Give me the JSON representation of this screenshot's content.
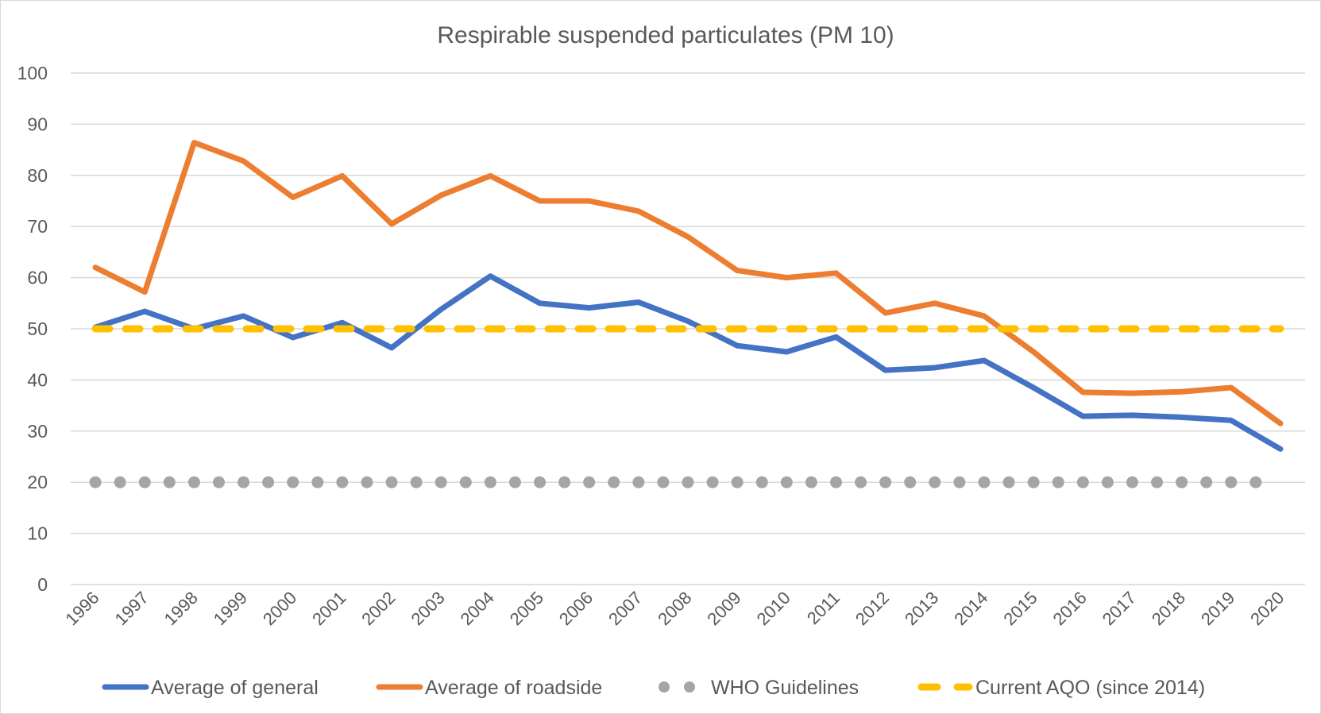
{
  "chart_data": {
    "type": "line",
    "title": "Respirable suspended particulates (PM 10)",
    "xlabel": "",
    "ylabel": "",
    "ylim": [
      0,
      100
    ],
    "yticks": [
      "0",
      "10",
      "20",
      "30",
      "40",
      "50",
      "60",
      "70",
      "80",
      "90",
      "100"
    ],
    "grid": true,
    "legend_position": "bottom",
    "categories": [
      "1996",
      "1997",
      "1998",
      "1999",
      "2000",
      "2001",
      "2002",
      "2003",
      "2004",
      "2005",
      "2006",
      "2007",
      "2008",
      "2009",
      "2010",
      "2011",
      "2012",
      "2013",
      "2014",
      "2015",
      "2016",
      "2017",
      "2018",
      "2019",
      "2020"
    ],
    "series": [
      {
        "name": "Average of general",
        "color": "#4472C4",
        "style": "solid",
        "values": [
          50.3,
          53.4,
          50.0,
          52.5,
          48.3,
          51.2,
          46.3,
          53.8,
          60.3,
          55.0,
          54.1,
          55.2,
          51.5,
          46.7,
          45.5,
          48.4,
          41.9,
          42.4,
          43.8,
          38.5,
          32.9,
          33.1,
          32.7,
          32.1,
          26.5
        ]
      },
      {
        "name": "Average of roadside",
        "color": "#ED7D31",
        "style": "solid",
        "values": [
          62.0,
          57.2,
          86.4,
          82.8,
          75.7,
          79.9,
          70.5,
          76.1,
          79.9,
          75.0,
          75.0,
          73.0,
          68.0,
          61.4,
          60.0,
          60.9,
          53.1,
          55.0,
          52.5,
          45.5,
          37.6,
          37.4,
          37.7,
          38.5,
          31.5
        ]
      },
      {
        "name": "WHO Guidelines",
        "color": "#A5A5A5",
        "style": "round-dot",
        "values": [
          20,
          20,
          20,
          20,
          20,
          20,
          20,
          20,
          20,
          20,
          20,
          20,
          20,
          20,
          20,
          20,
          20,
          20,
          20,
          20,
          20,
          20,
          20,
          20,
          20
        ]
      },
      {
        "name": "Current AQO (since 2014)",
        "color": "#FFC000",
        "style": "dash",
        "values": [
          50,
          50,
          50,
          50,
          50,
          50,
          50,
          50,
          50,
          50,
          50,
          50,
          50,
          50,
          50,
          50,
          50,
          50,
          50,
          50,
          50,
          50,
          50,
          50,
          50
        ]
      }
    ]
  }
}
